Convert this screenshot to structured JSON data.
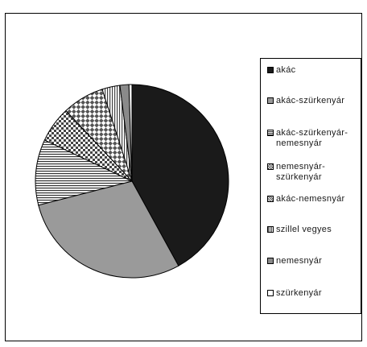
{
  "chart_data": {
    "type": "pie",
    "title": "",
    "slices": [
      {
        "label": "akác",
        "value": 42,
        "pattern": "solid-black"
      },
      {
        "label": "akác-szürkenyár",
        "value": 29,
        "pattern": "gray"
      },
      {
        "label": "akác-szürkenyár-nemesnyár",
        "value": 11,
        "pattern": "horizontal-lines"
      },
      {
        "label": "nemesnyár-szürkenyár",
        "value": 6,
        "pattern": "checker"
      },
      {
        "label": "akác-nemesnyár",
        "value": 7,
        "pattern": "diagonal-checker"
      },
      {
        "label": "szillel vegyes",
        "value": 3,
        "pattern": "vertical-lines"
      },
      {
        "label": "nemesnyár",
        "value": 1.5,
        "pattern": "gray-dark"
      },
      {
        "label": "szürkenyár",
        "value": 0.5,
        "pattern": "white"
      }
    ],
    "legend": {
      "position": "right",
      "items": [
        "akác",
        "akác-szürkenyár",
        "akác-szürkenyár-nemesnyár",
        "nemesnyár-szürkenyár",
        "akác-nemesnyár",
        "szillel vegyes",
        "nemesnyár",
        "szürkenyár"
      ]
    },
    "colors": {
      "solid-black": "#1a1a1a",
      "gray": "#9a9a9a",
      "gray-dark": "#8a8a8a",
      "white": "#ffffff",
      "line": "#000000"
    }
  }
}
